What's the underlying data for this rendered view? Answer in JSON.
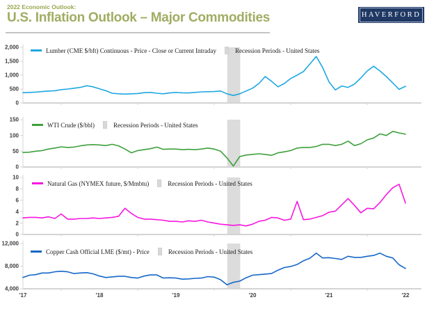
{
  "header": {
    "eyebrow": "2022 Economic Outlook:",
    "title": "U.S. Inflation Outlook – Major Commodities",
    "logo_text": "HAVERFORD",
    "colors": {
      "eyebrow": "#99a64f",
      "title": "#a0ad63",
      "logo_bg": "#1f3864"
    }
  },
  "axis": {
    "line_color": "#d4d4d4",
    "label_color": "#3d3d3d",
    "band_color": "#dcdcdc"
  },
  "chart_data": [
    {
      "type": "line",
      "series_label": "Lumber (CME $/bft) Continuous - Price - Close or Current Intraday",
      "recession_label": "Recession Periods - United States",
      "color": "#1ea7e1",
      "x_start": 2017.5,
      "x_ticks": [
        "'17",
        "'18",
        "'19",
        "'20",
        "'21",
        "'22"
      ],
      "x_tick_positions": [
        2017.5,
        2018.5,
        2019.5,
        2020.5,
        2021.5,
        2022.5
      ],
      "show_x_labels": false,
      "ylim": [
        0,
        2000
      ],
      "y_ticks": [
        0,
        500,
        1000,
        1500,
        2000
      ],
      "y_tick_labels": [
        "0",
        "500",
        "1,000",
        "1,500",
        "2,000"
      ],
      "recession_band_x": [
        2020.17,
        2020.34
      ],
      "values": [
        370,
        380,
        390,
        410,
        430,
        440,
        480,
        500,
        530,
        560,
        620,
        580,
        510,
        440,
        350,
        330,
        320,
        330,
        340,
        370,
        380,
        350,
        330,
        360,
        380,
        365,
        360,
        380,
        400,
        405,
        410,
        430,
        330,
        270,
        330,
        430,
        530,
        700,
        950,
        780,
        580,
        700,
        880,
        1000,
        1130,
        1400,
        1670,
        1280,
        760,
        470,
        610,
        560,
        680,
        900,
        1150,
        1320,
        1150,
        950,
        720,
        490,
        600
      ]
    },
    {
      "type": "line",
      "series_label": "WTI Crude ($/bbl)",
      "recession_label": "Recession Periods - United States",
      "color": "#3da03b",
      "x_start": 2017.5,
      "x_ticks": [
        "'17",
        "'18",
        "'19",
        "'20",
        "'21",
        "'22"
      ],
      "x_tick_positions": [
        2017.5,
        2018.5,
        2019.5,
        2020.5,
        2021.5,
        2022.5
      ],
      "show_x_labels": false,
      "ylim": [
        0,
        150
      ],
      "y_ticks": [
        0,
        50,
        100,
        150
      ],
      "y_tick_labels": [
        "0",
        "50",
        "100",
        "150"
      ],
      "recession_band_x": [
        2020.17,
        2020.34
      ],
      "values": [
        46,
        47,
        50,
        52,
        57,
        60,
        64,
        62,
        63,
        67,
        70,
        71,
        70,
        68,
        72,
        67,
        57,
        45,
        52,
        55,
        58,
        63,
        56,
        57,
        57,
        55,
        56,
        55,
        57,
        60,
        57,
        50,
        29,
        3,
        33,
        38,
        40,
        42,
        40,
        37,
        45,
        48,
        52,
        60,
        62,
        62,
        65,
        72,
        72,
        68,
        72,
        82,
        68,
        74,
        86,
        92,
        105,
        100,
        113,
        108,
        104
      ]
    },
    {
      "type": "line",
      "series_label": "Natural Gas (NYMEX future, $/Mmbtu)",
      "recession_label": "Recession Periods - United States",
      "color": "#f716e0",
      "x_start": 2017.5,
      "x_ticks": [
        "'17",
        "'18",
        "'19",
        "'20",
        "'21",
        "'22"
      ],
      "x_tick_positions": [
        2017.5,
        2018.5,
        2019.5,
        2020.5,
        2021.5,
        2022.5
      ],
      "show_x_labels": false,
      "ylim": [
        0,
        10
      ],
      "y_ticks": [
        0,
        2,
        4,
        6,
        8,
        10
      ],
      "y_tick_labels": [
        "0",
        "2",
        "4",
        "6",
        "8",
        "10"
      ],
      "recession_band_x": [
        2020.17,
        2020.34
      ],
      "values": [
        2.9,
        3.0,
        3.0,
        2.9,
        3.1,
        2.8,
        3.6,
        2.7,
        2.7,
        2.8,
        2.8,
        2.9,
        2.8,
        2.9,
        3.0,
        3.2,
        4.6,
        3.7,
        3.0,
        2.7,
        2.7,
        2.6,
        2.5,
        2.3,
        2.3,
        2.2,
        2.4,
        2.3,
        2.5,
        2.2,
        2.0,
        1.8,
        1.7,
        1.6,
        1.7,
        1.5,
        1.8,
        2.3,
        2.5,
        3.0,
        2.9,
        2.5,
        2.7,
        5.8,
        2.6,
        2.7,
        3.0,
        3.3,
        3.9,
        4.1,
        5.2,
        6.3,
        5.1,
        3.8,
        4.6,
        4.5,
        5.6,
        7.0,
        8.2,
        8.8,
        5.5
      ]
    },
    {
      "type": "line",
      "series_label": "Copper Cash Official LME ($/mt) - Price",
      "recession_label": "Recession Periods - United States",
      "color": "#1667c7",
      "x_start": 2017.5,
      "x_ticks": [
        "'17",
        "'18",
        "'19",
        "'20",
        "'21",
        "'22"
      ],
      "x_tick_positions": [
        2017.5,
        2018.5,
        2019.5,
        2020.5,
        2021.5,
        2022.5
      ],
      "show_x_labels": true,
      "ylim": [
        4000,
        12000
      ],
      "y_ticks": [
        4000,
        8000,
        12000
      ],
      "y_tick_labels": [
        "4,000",
        "8,000",
        "12,000"
      ],
      "recession_band_x": [
        2020.17,
        2020.34
      ],
      "values": [
        6000,
        6400,
        6500,
        6800,
        6800,
        7000,
        7100,
        7000,
        6700,
        6800,
        6850,
        6650,
        6250,
        6000,
        6100,
        6200,
        6200,
        6000,
        5900,
        6250,
        6450,
        6450,
        5900,
        5950,
        5900,
        5700,
        5750,
        5850,
        5900,
        6150,
        6050,
        5600,
        4700,
        5150,
        5350,
        5950,
        6400,
        6500,
        6600,
        6700,
        7300,
        7750,
        7950,
        8300,
        8950,
        9400,
        10300,
        9450,
        9500,
        9350,
        9200,
        9750,
        9550,
        9550,
        9750,
        9900,
        10300,
        9750,
        9450,
        8250,
        7600
      ]
    }
  ]
}
